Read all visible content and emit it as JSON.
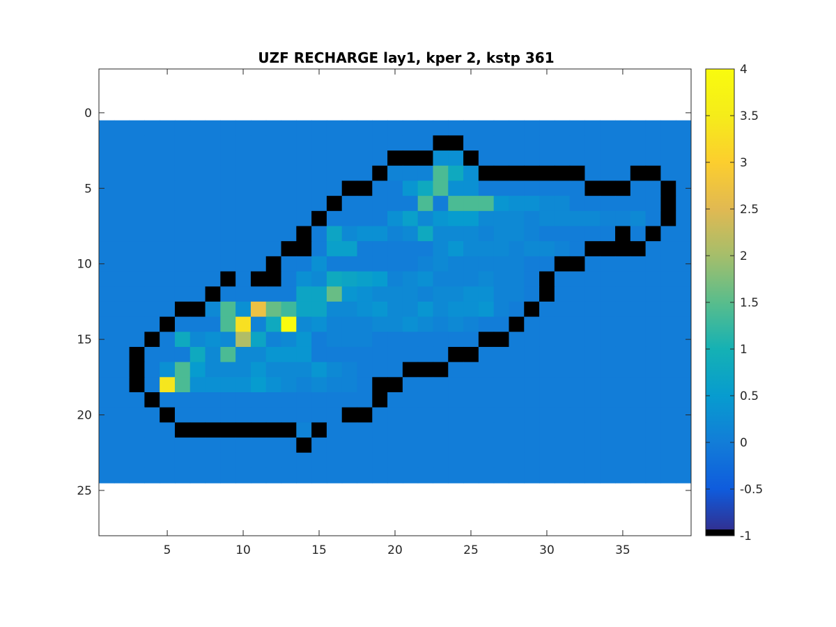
{
  "chart_data": {
    "type": "heatmap",
    "title": "UZF RECHARGE lay1, kper 2, kstp 361",
    "xlabel": "",
    "ylabel": "",
    "xlim": [
      0.5,
      39.5
    ],
    "ylim": [
      -2.9,
      28.0
    ],
    "y_reversed": true,
    "xticks": [
      5,
      10,
      15,
      20,
      25,
      30,
      35
    ],
    "yticks": [
      0,
      5,
      10,
      15,
      20,
      25
    ],
    "grid": false,
    "grid_size": {
      "rows": 24,
      "cols": 39,
      "row_start": 1,
      "col_start": 1
    },
    "background_value": 0,
    "cells": [
      [
        2,
        23,
        -1
      ],
      [
        2,
        24,
        -1
      ],
      [
        3,
        20,
        -1
      ],
      [
        3,
        21,
        -1
      ],
      [
        3,
        22,
        -1
      ],
      [
        3,
        23,
        0.3
      ],
      [
        3,
        24,
        0.3
      ],
      [
        3,
        25,
        -1
      ],
      [
        4,
        19,
        -1
      ],
      [
        4,
        20,
        0.1
      ],
      [
        4,
        21,
        0.1
      ],
      [
        4,
        22,
        0.1
      ],
      [
        4,
        23,
        1.4
      ],
      [
        4,
        24,
        0.8
      ],
      [
        4,
        25,
        0.3
      ],
      [
        4,
        26,
        -1
      ],
      [
        4,
        27,
        -1
      ],
      [
        4,
        28,
        -1
      ],
      [
        4,
        29,
        -1
      ],
      [
        4,
        30,
        -1
      ],
      [
        4,
        31,
        -1
      ],
      [
        4,
        32,
        -1
      ],
      [
        4,
        36,
        -1
      ],
      [
        4,
        37,
        -1
      ],
      [
        5,
        17,
        -1
      ],
      [
        5,
        18,
        -1
      ],
      [
        5,
        21,
        0.4
      ],
      [
        5,
        22,
        0.8
      ],
      [
        5,
        23,
        1.4
      ],
      [
        5,
        24,
        0.3
      ],
      [
        5,
        25,
        0.3
      ],
      [
        5,
        33,
        -1
      ],
      [
        5,
        34,
        -1
      ],
      [
        5,
        35,
        -1
      ],
      [
        5,
        38,
        -1
      ],
      [
        6,
        16,
        -1
      ],
      [
        6,
        22,
        1.4
      ],
      [
        6,
        24,
        1.4
      ],
      [
        6,
        25,
        1.4
      ],
      [
        6,
        26,
        1.4
      ],
      [
        6,
        27,
        0.4
      ],
      [
        6,
        28,
        0.3
      ],
      [
        6,
        29,
        0.3
      ],
      [
        6,
        30,
        0.2
      ],
      [
        6,
        31,
        0.2
      ],
      [
        6,
        38,
        -1
      ],
      [
        7,
        15,
        -1
      ],
      [
        7,
        20,
        0.3
      ],
      [
        7,
        21,
        0.6
      ],
      [
        7,
        22,
        0.2
      ],
      [
        7,
        23,
        0.4
      ],
      [
        7,
        24,
        0.5
      ],
      [
        7,
        25,
        0.5
      ],
      [
        7,
        26,
        0.2
      ],
      [
        7,
        27,
        0.2
      ],
      [
        7,
        28,
        0.2
      ],
      [
        7,
        29,
        0.1
      ],
      [
        7,
        30,
        0.2
      ],
      [
        7,
        31,
        0.2
      ],
      [
        7,
        32,
        0.2
      ],
      [
        7,
        33,
        0.2
      ],
      [
        7,
        34,
        0.1
      ],
      [
        7,
        35,
        0.1
      ],
      [
        7,
        36,
        0.2
      ],
      [
        7,
        38,
        -1
      ],
      [
        8,
        14,
        -1
      ],
      [
        8,
        16,
        0.7
      ],
      [
        8,
        17,
        0.2
      ],
      [
        8,
        18,
        0.3
      ],
      [
        8,
        19,
        0.3
      ],
      [
        8,
        20,
        0.1
      ],
      [
        8,
        21,
        0.2
      ],
      [
        8,
        22,
        0.8
      ],
      [
        8,
        23,
        0.2
      ],
      [
        8,
        24,
        0.2
      ],
      [
        8,
        25,
        0.2
      ],
      [
        8,
        26,
        0.1
      ],
      [
        8,
        27,
        0.2
      ],
      [
        8,
        28,
        0.2
      ],
      [
        8,
        29,
        0.1
      ],
      [
        8,
        35,
        -1
      ],
      [
        8,
        37,
        -1
      ],
      [
        9,
        13,
        -1
      ],
      [
        9,
        14,
        -1
      ],
      [
        9,
        16,
        0.6
      ],
      [
        9,
        17,
        0.6
      ],
      [
        9,
        23,
        0.2
      ],
      [
        9,
        24,
        0.4
      ],
      [
        9,
        25,
        0.2
      ],
      [
        9,
        26,
        0.2
      ],
      [
        9,
        27,
        0.2
      ],
      [
        9,
        28,
        0.1
      ],
      [
        9,
        29,
        0.2
      ],
      [
        9,
        30,
        0.2
      ],
      [
        9,
        31,
        0.1
      ],
      [
        9,
        33,
        -1
      ],
      [
        9,
        34,
        -1
      ],
      [
        9,
        35,
        -1
      ],
      [
        9,
        36,
        -1
      ],
      [
        10,
        12,
        -1
      ],
      [
        10,
        15,
        0.3
      ],
      [
        10,
        22,
        0.1
      ],
      [
        10,
        23,
        0.2
      ],
      [
        10,
        24,
        0.1
      ],
      [
        10,
        25,
        0.1
      ],
      [
        10,
        26,
        0.1
      ],
      [
        10,
        27,
        0.1
      ],
      [
        10,
        28,
        0.1
      ],
      [
        10,
        31,
        -1
      ],
      [
        10,
        32,
        -1
      ],
      [
        11,
        9,
        -1
      ],
      [
        11,
        11,
        -1
      ],
      [
        11,
        12,
        -1
      ],
      [
        11,
        14,
        0.3
      ],
      [
        11,
        15,
        0.2
      ],
      [
        11,
        16,
        0.8
      ],
      [
        11,
        17,
        0.7
      ],
      [
        11,
        18,
        0.6
      ],
      [
        11,
        19,
        0.5
      ],
      [
        11,
        20,
        0.1
      ],
      [
        11,
        21,
        0.2
      ],
      [
        11,
        22,
        0.3
      ],
      [
        11,
        23,
        0.1
      ],
      [
        11,
        24,
        0.1
      ],
      [
        11,
        25,
        0.1
      ],
      [
        11,
        26,
        0.2
      ],
      [
        11,
        27,
        0.1
      ],
      [
        11,
        28,
        0.1
      ],
      [
        11,
        30,
        -1
      ],
      [
        12,
        8,
        -1
      ],
      [
        12,
        14,
        0.7
      ],
      [
        12,
        15,
        0.7
      ],
      [
        12,
        16,
        1.6
      ],
      [
        12,
        17,
        0.4
      ],
      [
        12,
        18,
        0.3
      ],
      [
        12,
        19,
        0.2
      ],
      [
        12,
        20,
        0.2
      ],
      [
        12,
        21,
        0.2
      ],
      [
        12,
        22,
        0.1
      ],
      [
        12,
        23,
        0.2
      ],
      [
        12,
        24,
        0.2
      ],
      [
        12,
        25,
        0.3
      ],
      [
        12,
        26,
        0.3
      ],
      [
        12,
        27,
        0.1
      ],
      [
        12,
        28,
        0.1
      ],
      [
        12,
        30,
        -1
      ],
      [
        13,
        6,
        -1
      ],
      [
        13,
        7,
        -1
      ],
      [
        13,
        8,
        0.2
      ],
      [
        13,
        9,
        1.4
      ],
      [
        13,
        10,
        0.3
      ],
      [
        13,
        11,
        2.7
      ],
      [
        13,
        12,
        1.6
      ],
      [
        13,
        13,
        1.3
      ],
      [
        13,
        14,
        0.7
      ],
      [
        13,
        15,
        0.7
      ],
      [
        13,
        16,
        0.2
      ],
      [
        13,
        17,
        0.2
      ],
      [
        13,
        18,
        0.3
      ],
      [
        13,
        19,
        0.4
      ],
      [
        13,
        20,
        0.2
      ],
      [
        13,
        21,
        0.2
      ],
      [
        13,
        22,
        0.4
      ],
      [
        13,
        23,
        0.2
      ],
      [
        13,
        24,
        0.3
      ],
      [
        13,
        25,
        0.3
      ],
      [
        13,
        26,
        0.4
      ],
      [
        13,
        27,
        0.1
      ],
      [
        13,
        29,
        -1
      ],
      [
        14,
        5,
        -1
      ],
      [
        14,
        9,
        1.4
      ],
      [
        14,
        10,
        3.3
      ],
      [
        14,
        11,
        0.1
      ],
      [
        14,
        12,
        0.8
      ],
      [
        14,
        13,
        4.0
      ],
      [
        14,
        14,
        0.2
      ],
      [
        14,
        15,
        0.3
      ],
      [
        14,
        16,
        0.1
      ],
      [
        14,
        17,
        0.1
      ],
      [
        14,
        18,
        0.1
      ],
      [
        14,
        19,
        0.2
      ],
      [
        14,
        20,
        0.2
      ],
      [
        14,
        21,
        0.3
      ],
      [
        14,
        22,
        0.2
      ],
      [
        14,
        23,
        0.1
      ],
      [
        14,
        24,
        0.2
      ],
      [
        14,
        25,
        0.1
      ],
      [
        14,
        28,
        -1
      ],
      [
        15,
        4,
        -1
      ],
      [
        15,
        6,
        0.8
      ],
      [
        15,
        7,
        0.2
      ],
      [
        15,
        8,
        0.3
      ],
      [
        15,
        9,
        0.2
      ],
      [
        15,
        10,
        2.1
      ],
      [
        15,
        11,
        0.7
      ],
      [
        15,
        12,
        0.1
      ],
      [
        15,
        13,
        0.2
      ],
      [
        15,
        14,
        0.4
      ],
      [
        15,
        16,
        0.1
      ],
      [
        15,
        17,
        0.1
      ],
      [
        15,
        18,
        0.1
      ],
      [
        15,
        26,
        -1
      ],
      [
        15,
        27,
        -1
      ],
      [
        16,
        3,
        -1
      ],
      [
        16,
        7,
        0.8
      ],
      [
        16,
        8,
        0.2
      ],
      [
        16,
        9,
        1.4
      ],
      [
        16,
        10,
        0.2
      ],
      [
        16,
        11,
        0.2
      ],
      [
        16,
        12,
        0.4
      ],
      [
        16,
        13,
        0.4
      ],
      [
        16,
        14,
        0.4
      ],
      [
        16,
        24,
        -1
      ],
      [
        16,
        25,
        -1
      ],
      [
        17,
        3,
        -1
      ],
      [
        17,
        5,
        0.3
      ],
      [
        17,
        6,
        1.4
      ],
      [
        17,
        7,
        0.5
      ],
      [
        17,
        8,
        0.2
      ],
      [
        17,
        9,
        0.2
      ],
      [
        17,
        10,
        0.2
      ],
      [
        17,
        11,
        0.4
      ],
      [
        17,
        12,
        0.2
      ],
      [
        17,
        13,
        0.2
      ],
      [
        17,
        14,
        0.2
      ],
      [
        17,
        15,
        0.4
      ],
      [
        17,
        16,
        0.2
      ],
      [
        17,
        17,
        0.1
      ],
      [
        17,
        21,
        -1
      ],
      [
        17,
        22,
        -1
      ],
      [
        17,
        23,
        -1
      ],
      [
        18,
        3,
        -1
      ],
      [
        18,
        5,
        3.4
      ],
      [
        18,
        6,
        1.4
      ],
      [
        18,
        7,
        0.3
      ],
      [
        18,
        8,
        0.3
      ],
      [
        18,
        9,
        0.3
      ],
      [
        18,
        10,
        0.3
      ],
      [
        18,
        11,
        0.5
      ],
      [
        18,
        12,
        0.3
      ],
      [
        18,
        13,
        0.2
      ],
      [
        18,
        14,
        0.1
      ],
      [
        18,
        15,
        0.2
      ],
      [
        18,
        16,
        0.1
      ],
      [
        18,
        17,
        0.1
      ],
      [
        18,
        19,
        -1
      ],
      [
        18,
        20,
        -1
      ],
      [
        19,
        4,
        -1
      ],
      [
        19,
        19,
        -1
      ],
      [
        20,
        5,
        -1
      ],
      [
        20,
        17,
        -1
      ],
      [
        20,
        18,
        -1
      ],
      [
        21,
        6,
        -1
      ],
      [
        21,
        7,
        -1
      ],
      [
        21,
        8,
        -1
      ],
      [
        21,
        9,
        -1
      ],
      [
        21,
        10,
        -1
      ],
      [
        21,
        11,
        -1
      ],
      [
        21,
        12,
        -1
      ],
      [
        21,
        13,
        -1
      ],
      [
        21,
        14,
        0.1
      ],
      [
        21,
        15,
        -1
      ],
      [
        22,
        14,
        -1
      ]
    ],
    "colorbar": {
      "colormap": "parula",
      "clim": [
        -1,
        4
      ],
      "min_color": "#000000",
      "ticks": [
        "-1",
        "-0.5",
        "0",
        "0.5",
        "1",
        "1.5",
        "2",
        "2.5",
        "3",
        "3.5",
        "4"
      ]
    }
  }
}
